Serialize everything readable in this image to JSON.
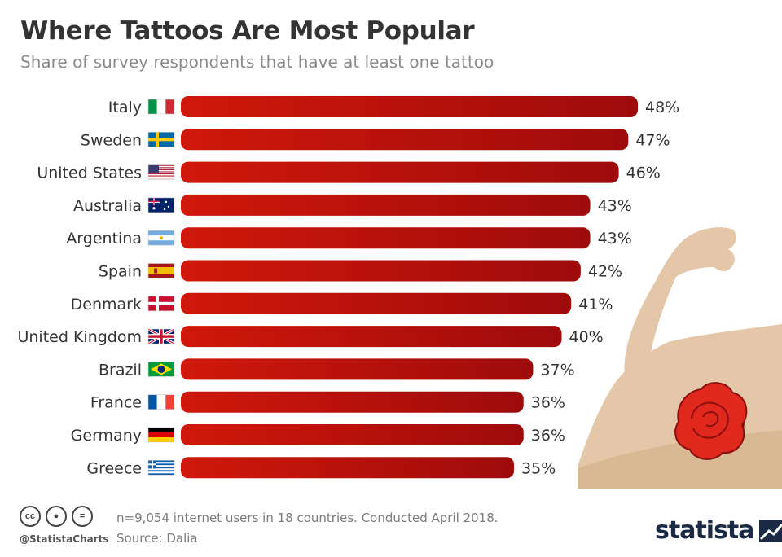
{
  "header": {
    "title": "Where Tattoos Are Most Popular",
    "subtitle": "Share of survey respondents that have at least one tattoo"
  },
  "chart_data": {
    "type": "bar",
    "orientation": "horizontal",
    "categories": [
      "Italy",
      "Sweden",
      "United States",
      "Australia",
      "Argentina",
      "Spain",
      "Denmark",
      "United Kingdom",
      "Brazil",
      "France",
      "Germany",
      "Greece"
    ],
    "values": [
      48,
      47,
      46,
      43,
      43,
      42,
      41,
      40,
      37,
      36,
      36,
      35
    ],
    "value_labels": [
      "48%",
      "47%",
      "46%",
      "43%",
      "43%",
      "42%",
      "41%",
      "40%",
      "37%",
      "36%",
      "36%",
      "35%"
    ],
    "flags": [
      "italy-flag",
      "sweden-flag",
      "united-states-flag",
      "australia-flag",
      "argentina-flag",
      "spain-flag",
      "denmark-flag",
      "united-kingdom-flag",
      "brazil-flag",
      "france-flag",
      "germany-flag",
      "greece-flag"
    ],
    "unit": "%",
    "bar_color": "#d0180b",
    "bar_color_dark": "#9e0b0b"
  },
  "footer": {
    "note": "n=9,054 internet users in 18 countries. Conducted April 2018.",
    "source": "Source: Dalia",
    "handle": "@StatistaCharts",
    "logo": "statista"
  },
  "icons": [
    "creative-commons-icon",
    "attribution-icon",
    "no-derivatives-icon",
    "tattooed-arm-illustration",
    "rose-tattoo-icon"
  ]
}
